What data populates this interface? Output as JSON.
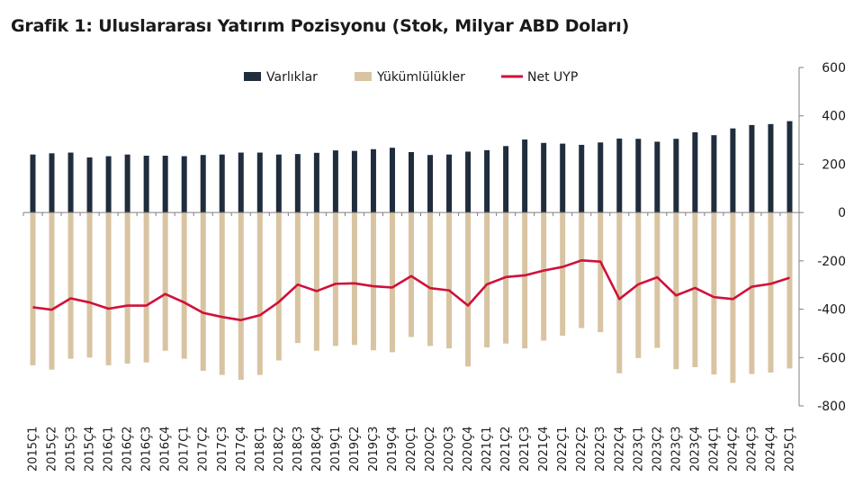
{
  "title": "Grafik 1: Uluslararası Yatırım Pozisyonu (Stok, Milyar ABD Doları)",
  "chart_data": {
    "type": "bar",
    "categories": [
      "2015Ç1",
      "2015Ç2",
      "2015Ç3",
      "2015Ç4",
      "2016Ç1",
      "2016Ç2",
      "2016Ç3",
      "2016Ç4",
      "2017Ç1",
      "2017Ç2",
      "2017Ç3",
      "2017Ç4",
      "2018Ç1",
      "2018Ç2",
      "2018Ç3",
      "2018Ç4",
      "2019Ç1",
      "2019Ç2",
      "2019Ç3",
      "2019Ç4",
      "2020Ç1",
      "2020Ç2",
      "2020Ç3",
      "2020Ç4",
      "2021Ç1",
      "2021Ç2",
      "2021Ç3",
      "2021Ç4",
      "2022Ç1",
      "2022Ç2",
      "2022Ç3",
      "2022Ç4",
      "2023Ç1",
      "2023Ç2",
      "2023Ç3",
      "2023Ç4",
      "2024Ç1",
      "2024Ç2",
      "2024Ç3",
      "2024Ç4",
      "2025Ç1"
    ],
    "series": [
      {
        "name": "Varlıklar",
        "kind": "bar",
        "color": "#1f2d3d",
        "values": [
          240,
          245,
          248,
          228,
          233,
          240,
          235,
          235,
          233,
          238,
          240,
          248,
          248,
          240,
          242,
          247,
          257,
          255,
          262,
          268,
          250,
          238,
          240,
          252,
          258,
          275,
          302,
          288,
          285,
          280,
          290,
          306,
          305,
          293,
          305,
          332,
          320,
          348,
          362,
          366,
          378
        ]
      },
      {
        "name": "Yükümlülükler",
        "kind": "bar",
        "color": "#d8c4a2",
        "values": [
          -632,
          -650,
          -605,
          -600,
          -632,
          -625,
          -620,
          -572,
          -605,
          -655,
          -672,
          -692,
          -672,
          -612,
          -540,
          -572,
          -552,
          -548,
          -570,
          -578,
          -515,
          -552,
          -562,
          -637,
          -558,
          -542,
          -562,
          -530,
          -510,
          -478,
          -495,
          -665,
          -602,
          -560,
          -648,
          -640,
          -670,
          -705,
          -668,
          -662,
          -645
        ]
      },
      {
        "name": "Net UYP",
        "kind": "line",
        "color": "#d0103a",
        "values": [
          -392,
          -402,
          -355,
          -372,
          -398,
          -385,
          -385,
          -337,
          -372,
          -415,
          -432,
          -445,
          -425,
          -370,
          -298,
          -325,
          -295,
          -293,
          -305,
          -310,
          -263,
          -313,
          -322,
          -385,
          -297,
          -267,
          -260,
          -240,
          -225,
          -198,
          -203,
          -358,
          -297,
          -268,
          -343,
          -312,
          -350,
          -358,
          -307,
          -295,
          -270
        ]
      }
    ],
    "ylim": [
      -800,
      600
    ],
    "yticks": [
      -800,
      -600,
      -400,
      -200,
      0,
      200,
      400,
      600
    ],
    "legend_position": "top",
    "y_axis_side": "right",
    "grid": false
  }
}
